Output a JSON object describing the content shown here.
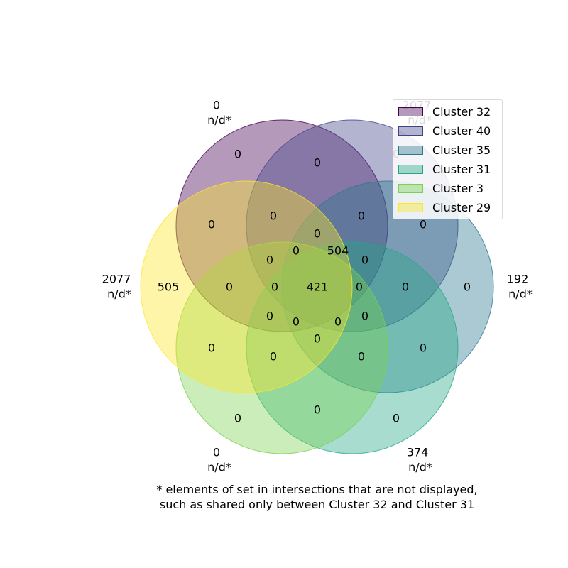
{
  "sets": [
    {
      "name": "Cluster 32",
      "fill": "#440154",
      "stroke": "#440154",
      "outside_count": "0",
      "outside_note": "n/d*"
    },
    {
      "name": "Cluster 40",
      "fill": "#414487",
      "stroke": "#414487",
      "outside_count": "2077",
      "outside_note": "n/d*"
    },
    {
      "name": "Cluster 35",
      "fill": "#2a788e",
      "stroke": "#2a788e",
      "outside_count": "192",
      "outside_note": "n/d*"
    },
    {
      "name": "Cluster 31",
      "fill": "#22a884",
      "stroke": "#22a884",
      "outside_count": "374",
      "outside_note": "n/d*"
    },
    {
      "name": "Cluster 3",
      "fill": "#7ad151",
      "stroke": "#7ad151",
      "outside_count": "0",
      "outside_note": "n/d*"
    },
    {
      "name": "Cluster 29",
      "fill": "#fde725",
      "stroke": "#fde725",
      "outside_count": "2077",
      "outside_note": "n/d*"
    }
  ],
  "region_values": [
    "0",
    "0",
    "0",
    "0",
    "0",
    "0",
    "0",
    "0",
    "0",
    "0",
    "0",
    "504",
    "0",
    "0",
    "0",
    "0",
    "505",
    "0",
    "0",
    "421",
    "0",
    "0",
    "0",
    "0",
    "0",
    "0",
    "0",
    "0",
    "0",
    "0",
    "0",
    "0",
    "0",
    "0",
    "0",
    "0"
  ],
  "footnote": {
    "line1": "* elements of set in intersections that are not displayed,",
    "line2": "such as shared only between Cluster 32 and Cluster 31"
  }
}
